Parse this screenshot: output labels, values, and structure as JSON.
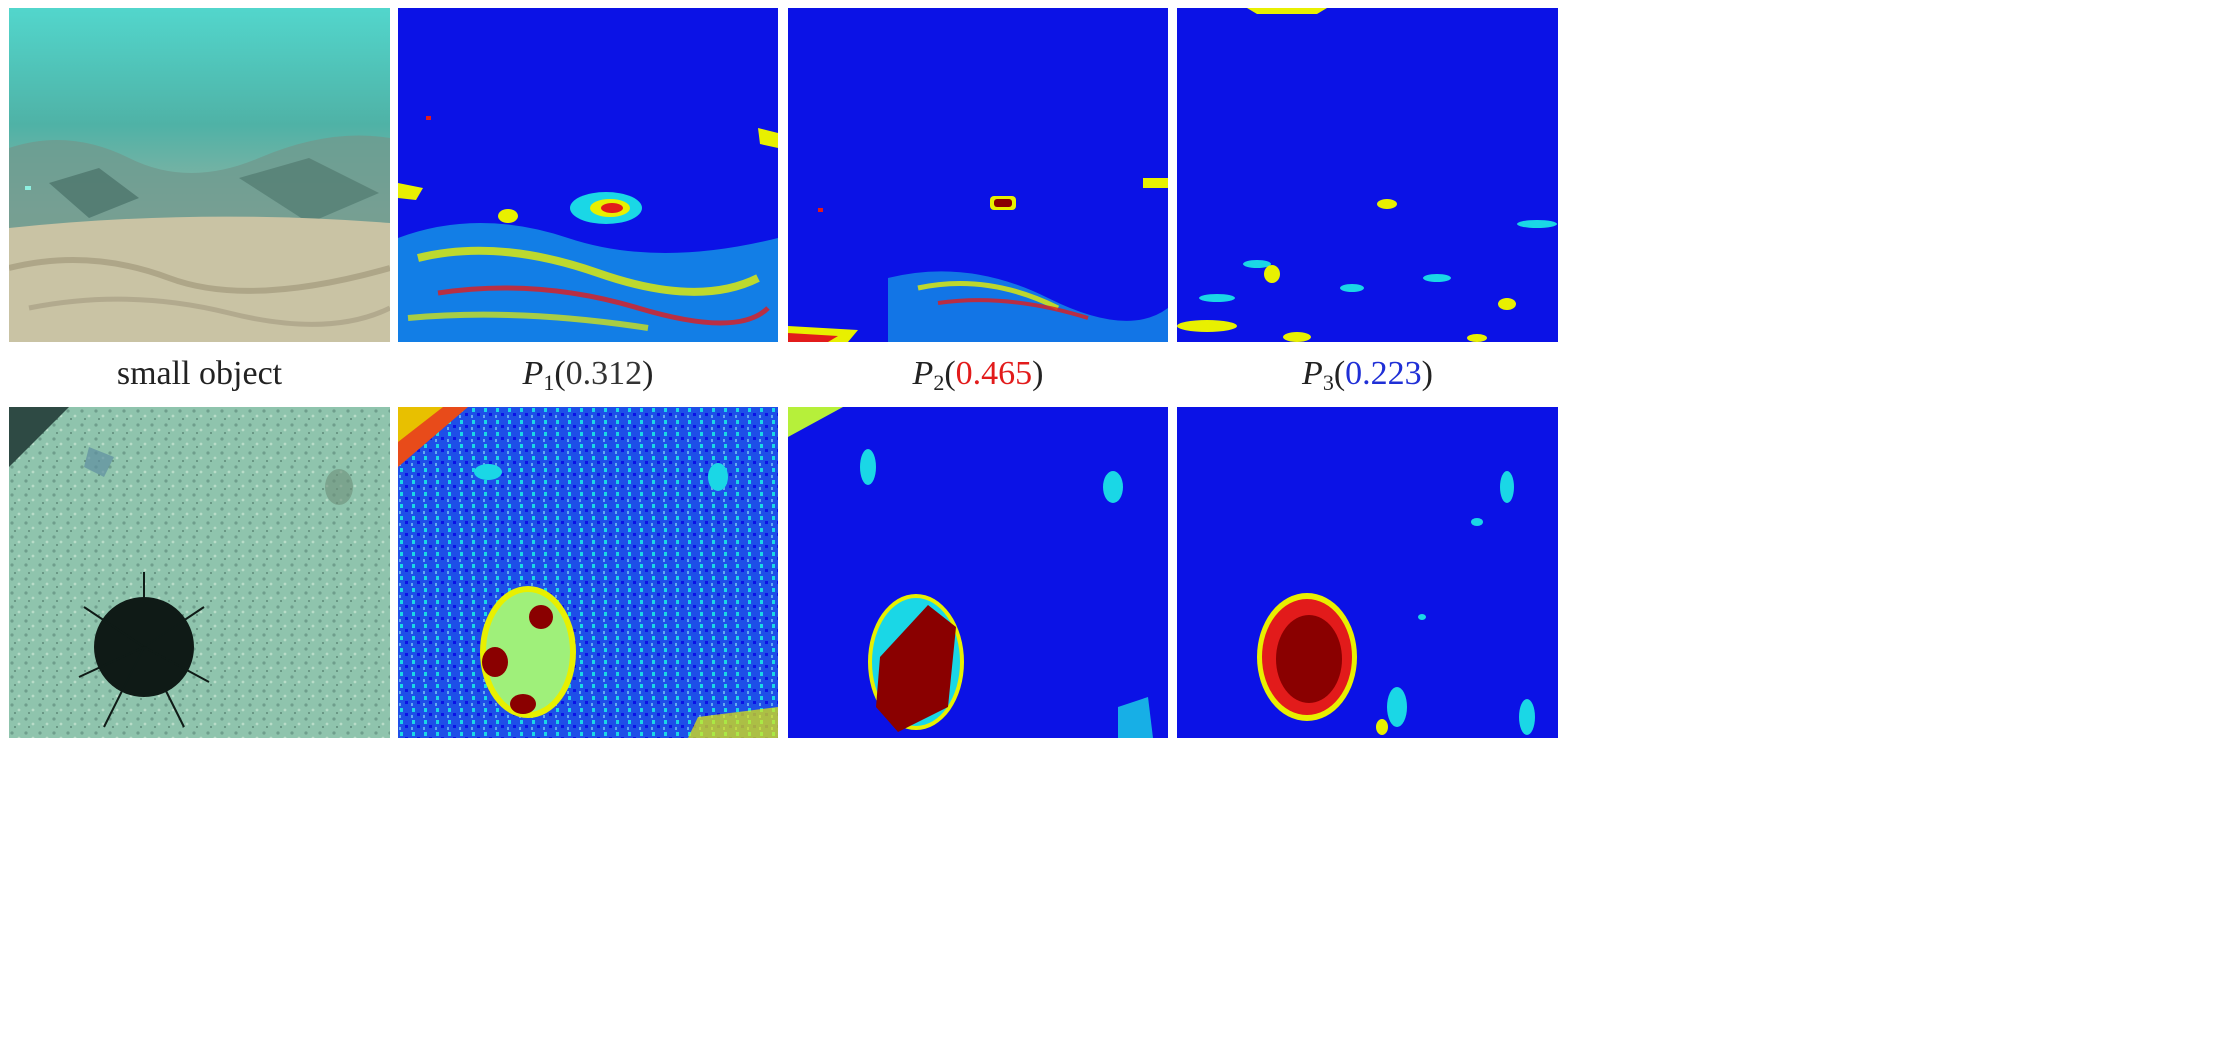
{
  "captions": {
    "col1": "small object",
    "p1": {
      "symbol": "P",
      "subscript": "1",
      "open": "(",
      "value": "0.312",
      "close": ")",
      "value_color": "#333333"
    },
    "p2": {
      "symbol": "P",
      "subscript": "2",
      "open": "(",
      "value": "0.465",
      "close": ")",
      "value_color": "#e21b1b"
    },
    "p3": {
      "symbol": "P",
      "subscript": "3",
      "open": "(",
      "value": "0.223",
      "close": ")",
      "value_color": "#1f2fd6"
    }
  },
  "colors": {
    "heatmap_background": "#0b12e6",
    "heatmap_low_cyan": "#1ad7e6",
    "heatmap_mid_yellow": "#e8f000",
    "heatmap_high_red": "#e21b1b",
    "heatmap_peak_darkred": "#8a0000",
    "water_teal": "#5fc6c0",
    "seafloor_sand": "#c9c3a4"
  }
}
